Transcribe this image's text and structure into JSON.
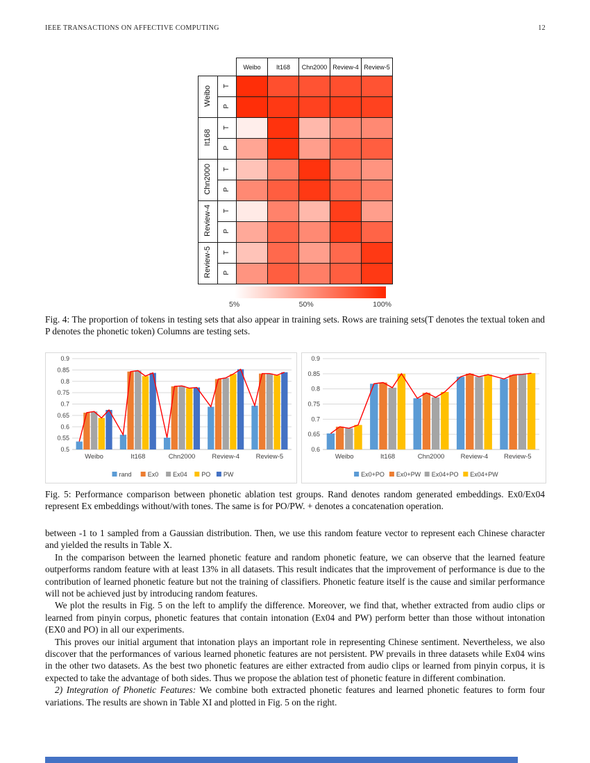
{
  "page": {
    "header_left": "IEEE TRANSACTIONS ON AFFECTIVE COMPUTING",
    "page_number": "12"
  },
  "fig4": {
    "caption": "Fig. 4: The proportion of tokens in testing sets that also appear in training sets. Rows are training sets(T denotes the textual token and P denotes the phonetic token) Columns are testing sets."
  },
  "fig5": {
    "caption": "Fig. 5: Performance comparison between phonetic ablation test groups. Rand denotes random generated embeddings. Ex0/Ex04 represent Ex embeddings without/with tones. The same is for PO/PW. + denotes a concatenation operation."
  },
  "body": {
    "para1": "between -1 to 1 sampled from a Gaussian distribution. Then, we use this random feature vector to represent each Chinese character and yielded the results in Table X.",
    "para2": "In the comparison between the learned phonetic feature and random phonetic feature, we can observe that the learned feature outperforms random feature with at least 13% in all datasets. This result indicates that the improvement of performance is due to the contribution of learned phonetic feature but not the training of classifiers. Phonetic feature itself is the cause and similar performance will not be achieved just by introducing random features.",
    "para3": "We plot the results in Fig. 5 on the left to amplify the difference. Moreover, we find that, whether extracted from audio clips or learned from pinyin corpus, phonetic features that contain intonation (Ex04 and PW) perform better than those without intonation (EX0 and PO) in all our experiments.",
    "para4": "This proves our initial argument that intonation plays an important role in representing Chinese sentiment. Nevertheless, we also discover that the performances of various learned phonetic features are not persistent. PW prevails in three datasets while Ex04 wins in the other two datasets. As the best two phonetic features are either extracted from audio clips or learned from pinyin corpus, it is expected to take the advantage of both sides. Thus we propose the ablation test of phonetic feature in different combination.",
    "para5_lead": "2) Integration of Phonetic Features:",
    "para5_rest": "We combine both extracted phonetic features and learned phonetic features to form four variations. The results are shown in Table XI and plotted in Fig. 5 on the right."
  },
  "bottom_bar": {
    "color": "#4472C4"
  },
  "chart_data": [
    {
      "type": "heatmap",
      "columns": [
        "Weibo",
        "It168",
        "Chn2000",
        "Review-4",
        "Review-5"
      ],
      "row_sublabels": [
        "T",
        "P"
      ],
      "rows": [
        {
          "group": "Weibo",
          "T": [
            97,
            82,
            80,
            82,
            80
          ],
          "P": [
            97,
            92,
            88,
            90,
            88
          ]
        },
        {
          "group": "It168",
          "T": [
            8,
            95,
            33,
            55,
            55
          ],
          "P": [
            42,
            95,
            45,
            75,
            75
          ]
        },
        {
          "group": "Chn2000",
          "T": [
            28,
            60,
            95,
            58,
            50
          ],
          "P": [
            55,
            75,
            92,
            70,
            60
          ]
        },
        {
          "group": "Review-4",
          "T": [
            10,
            58,
            33,
            90,
            45
          ],
          "P": [
            40,
            72,
            55,
            90,
            72
          ]
        },
        {
          "group": "Review-5",
          "T": [
            28,
            70,
            45,
            70,
            92
          ],
          "P": [
            50,
            75,
            60,
            75,
            92
          ]
        }
      ],
      "scale": {
        "labels": [
          "5%",
          "50%",
          "100%"
        ],
        "low_color": "#FFFFFF",
        "high_color": "#FF2800"
      }
    },
    {
      "type": "bar",
      "categories": [
        "Weibo",
        "It168",
        "Chn2000",
        "Review-4",
        "Review-5"
      ],
      "series": [
        {
          "name": "rand",
          "color": "#5B9BD5",
          "values": [
            0.535,
            0.565,
            0.552,
            0.688,
            0.693
          ]
        },
        {
          "name": "Ex0",
          "color": "#ED7D31",
          "values": [
            0.662,
            0.843,
            0.778,
            0.81,
            0.834
          ]
        },
        {
          "name": "Ex04",
          "color": "#A5A5A5",
          "values": [
            0.667,
            0.847,
            0.78,
            0.815,
            0.834
          ]
        },
        {
          "name": "PO",
          "color": "#FFC000",
          "values": [
            0.639,
            0.823,
            0.77,
            0.832,
            0.827
          ]
        },
        {
          "name": "PW",
          "color": "#4472C4",
          "values": [
            0.674,
            0.837,
            0.773,
            0.853,
            0.84
          ]
        }
      ],
      "ylim": [
        0.5,
        0.9
      ],
      "yticks": [
        "0.5",
        "0.55",
        "0.6",
        "0.65",
        "0.7",
        "0.75",
        "0.8",
        "0.85",
        "0.9"
      ],
      "grid": true,
      "legend_position": "bottom",
      "overlay_line_color": "#FF0000"
    },
    {
      "type": "bar",
      "categories": [
        "Weibo",
        "It168",
        "Chn2000",
        "Review-4",
        "Review-5"
      ],
      "series": [
        {
          "name": "Ex0+PO",
          "color": "#5B9BD5",
          "values": [
            0.653,
            0.817,
            0.769,
            0.84,
            0.833
          ]
        },
        {
          "name": "Ex0+PW",
          "color": "#ED7D31",
          "values": [
            0.675,
            0.821,
            0.787,
            0.85,
            0.846
          ]
        },
        {
          "name": "Ex04+PO",
          "color": "#A5A5A5",
          "values": [
            0.67,
            0.804,
            0.772,
            0.84,
            0.848
          ]
        },
        {
          "name": "Ex04+PW",
          "color": "#FFC000",
          "values": [
            0.681,
            0.85,
            0.79,
            0.847,
            0.852
          ]
        }
      ],
      "ylim": [
        0.6,
        0.9
      ],
      "yticks": [
        "0.6",
        "0.65",
        "0.7",
        "0.75",
        "0.8",
        "0.85",
        "0.9"
      ],
      "grid": true,
      "legend_position": "bottom",
      "overlay_line_color": "#FF0000"
    }
  ]
}
